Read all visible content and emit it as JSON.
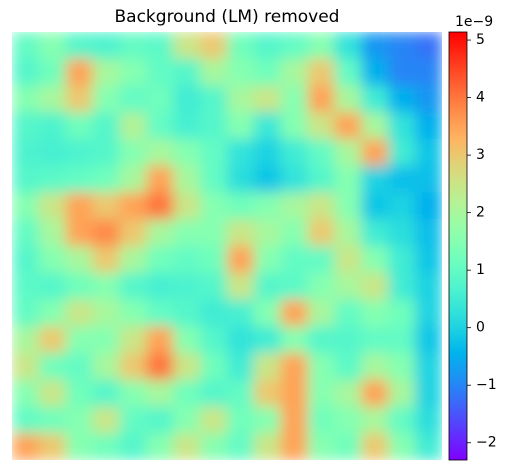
{
  "chart_data": {
    "type": "heatmap",
    "title": "Background (LM) removed",
    "colormap": "rainbow",
    "colorbar_offset": "1e−9",
    "clim": [
      -2.3,
      5.14
    ],
    "cticks": [
      {
        "value": -2,
        "label": "−2"
      },
      {
        "value": -1,
        "label": "−1"
      },
      0,
      1,
      2,
      3,
      4,
      5
    ],
    "z": [
      [
        1,
        1.5,
        0.8,
        0.7,
        1,
        0.9,
        2.5,
        3,
        1.2,
        0.8,
        1,
        1.5,
        0.3,
        -0.8,
        -1,
        -1.2
      ],
      [
        0.8,
        1.2,
        3.5,
        2,
        1.5,
        1,
        0.8,
        2,
        1.5,
        1.2,
        2,
        3,
        1,
        -0.5,
        -1,
        -1
      ],
      [
        1.5,
        2,
        3,
        1.5,
        1,
        1.2,
        0.5,
        0.8,
        2,
        2.5,
        1.5,
        3.5,
        2,
        0.5,
        -0.5,
        -0.8
      ],
      [
        0.8,
        0.7,
        1.2,
        0.8,
        2.2,
        1,
        0.6,
        0.8,
        1.5,
        0.4,
        1.5,
        2.5,
        3.5,
        2,
        0.3,
        -0.5
      ],
      [
        0.7,
        0.6,
        0.7,
        0.8,
        1.5,
        2,
        1.5,
        1,
        0.3,
        0,
        0.5,
        1,
        2,
        3.5,
        0.5,
        -0.2
      ],
      [
        0.8,
        0.9,
        1,
        1.2,
        2,
        3.5,
        2,
        1,
        0.2,
        -0.2,
        0.3,
        0.8,
        1.5,
        0,
        -0.3,
        -0.3
      ],
      [
        1.5,
        2.5,
        3.5,
        3,
        3.5,
        4,
        2.5,
        1.5,
        1.2,
        1.5,
        2,
        2.5,
        1.5,
        -0.2,
        0,
        -0.5
      ],
      [
        1,
        2,
        3.5,
        3.8,
        3,
        2,
        1.5,
        1.5,
        2.5,
        2,
        1.5,
        3,
        2,
        0.5,
        0.2,
        -0.3
      ],
      [
        0.8,
        1.5,
        2,
        3,
        2,
        1.2,
        1,
        1.2,
        3.5,
        1.5,
        1,
        1,
        2.5,
        1.5,
        0.5,
        -0.2
      ],
      [
        0.9,
        0.8,
        1.2,
        1.5,
        0.8,
        0.6,
        0.7,
        0.8,
        2.5,
        0.8,
        0.9,
        1.5,
        2,
        2.5,
        0.5,
        0
      ],
      [
        1,
        1.5,
        2.5,
        2,
        1.5,
        1,
        0.8,
        0.5,
        0.6,
        1.5,
        3.5,
        2,
        1,
        1.5,
        1.2,
        0
      ],
      [
        2,
        3,
        1.5,
        1.5,
        2.5,
        3.5,
        1.5,
        0.8,
        0.3,
        0.5,
        1.5,
        0.8,
        0.8,
        1,
        1,
        -0.2
      ],
      [
        2.5,
        1.2,
        1,
        2,
        3,
        4,
        2.5,
        1.2,
        0.5,
        2.5,
        3.5,
        1.5,
        0.9,
        2,
        1.5,
        0
      ],
      [
        1.5,
        2.5,
        1.2,
        0.8,
        1.5,
        2,
        1.2,
        0.8,
        1,
        3,
        3.5,
        1.5,
        2,
        3.5,
        2,
        0
      ],
      [
        1,
        1.2,
        1.5,
        2.5,
        1,
        0.8,
        1.5,
        2.5,
        1.2,
        1.5,
        3.5,
        1.2,
        1.5,
        2,
        1,
        0.2
      ],
      [
        3.5,
        3,
        1.5,
        1.2,
        0.8,
        1.5,
        2.5,
        1.5,
        1,
        2.5,
        3.5,
        1.5,
        1.2,
        3,
        1.5,
        0.5
      ]
    ]
  }
}
